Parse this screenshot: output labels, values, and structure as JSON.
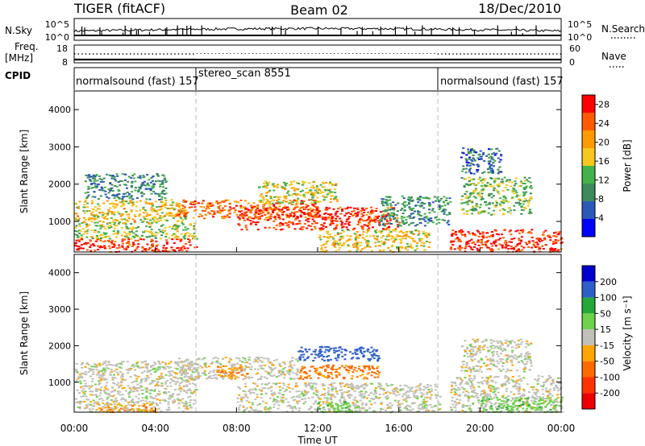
{
  "header": {
    "radar": "TIGER (fitACF)",
    "beam": "Beam 02",
    "date": "18/Dec/2010"
  },
  "status_panels": {
    "nsky_label": "N.Sky",
    "nsky_ticks": [
      "10^5",
      "10^0"
    ],
    "nsearch_label": "N.Search",
    "nsearch_ticks": [
      "10^5",
      "10^0"
    ],
    "freq_label": "Freq.",
    "freq_unit": "[MHz]",
    "freq_ticks": [
      "18",
      "8"
    ],
    "nave_label": "Nave",
    "nave_ticks": [
      "60",
      "0"
    ],
    "cpid_label": "CPID"
  },
  "cpid_segments": [
    {
      "label": "normalsound (fast) 157",
      "start": "00:00",
      "end": "06:00"
    },
    {
      "label": "stereo_scan 8551",
      "start": "06:00",
      "end": "18:00"
    },
    {
      "label": "normalsound (fast) 157",
      "start": "18:00",
      "end": "24:00"
    }
  ],
  "colors": {
    "power_scale": [
      "#0000ff",
      "#2c58b8",
      "#3d8a5a",
      "#44b24a",
      "#f4c81e",
      "#ff9a00",
      "#ff5a00",
      "#ff0000"
    ],
    "velocity_scale": [
      "#0000cc",
      "#2e5fc8",
      "#24a83a",
      "#6ed24a",
      "#c0c0b8",
      "#ffa500",
      "#ff6a00",
      "#ff3300",
      "#ee0000"
    ],
    "mode_divider": "#bbbbbb"
  },
  "chart_data": [
    {
      "type": "heatmap",
      "panel": "power",
      "ylabel": "Slant Range [km]",
      "xlabel": "",
      "xlim": [
        "00:00",
        "24:00"
      ],
      "ylim": [
        180,
        4500
      ],
      "yticks": [
        1000,
        2000,
        3000,
        4000
      ],
      "colorbar_label": "Power [dB]",
      "colorbar_ticks": [
        4,
        8,
        12,
        16,
        20,
        24,
        28
      ],
      "colorbar_range": [
        0,
        30
      ],
      "bands": [
        {
          "t0": 0.0,
          "t1": 6.0,
          "r0": 200,
          "r1": 550,
          "level": 27
        },
        {
          "t0": 0.0,
          "t1": 6.0,
          "r0": 550,
          "r1": 1000,
          "level": 15
        },
        {
          "t0": 0.0,
          "t1": 5.5,
          "r0": 1000,
          "r1": 1600,
          "level": 18
        },
        {
          "t0": 0.5,
          "t1": 4.5,
          "r0": 1600,
          "r1": 2300,
          "level": 9
        },
        {
          "t0": 5.0,
          "t1": 12.0,
          "r0": 1100,
          "r1": 1600,
          "level": 23
        },
        {
          "t0": 8.0,
          "t1": 16.0,
          "r0": 800,
          "r1": 1400,
          "level": 27
        },
        {
          "t0": 9.0,
          "t1": 13.0,
          "r0": 1500,
          "r1": 2100,
          "level": 16
        },
        {
          "t0": 12.0,
          "t1": 17.5,
          "r0": 200,
          "r1": 800,
          "level": 18
        },
        {
          "t0": 15.0,
          "t1": 18.5,
          "r0": 900,
          "r1": 1700,
          "level": 10
        },
        {
          "t0": 18.5,
          "t1": 24.0,
          "r0": 200,
          "r1": 800,
          "level": 27
        },
        {
          "t0": 19.0,
          "t1": 22.5,
          "r0": 1200,
          "r1": 2200,
          "level": 13
        },
        {
          "t0": 19.0,
          "t1": 21.0,
          "r0": 2300,
          "r1": 3000,
          "level": 7
        }
      ]
    },
    {
      "type": "heatmap",
      "panel": "velocity",
      "ylabel": "Slant Range [km]",
      "xlabel": "Time UT",
      "xlim": [
        "00:00",
        "24:00"
      ],
      "xticks": [
        "00:00",
        "04:00",
        "08:00",
        "12:00",
        "16:00",
        "20:00",
        "00:00"
      ],
      "ylim": [
        180,
        4500
      ],
      "yticks": [
        1000,
        2000,
        3000,
        4000
      ],
      "colorbar_label": "Velocity [m s⁻¹]",
      "colorbar_ticks": [
        200,
        100,
        50,
        15,
        -15,
        -50,
        -100,
        -200
      ],
      "bands": [
        {
          "t0": 0.0,
          "t1": 6.0,
          "r0": 200,
          "r1": 1600,
          "level": 0
        },
        {
          "t0": 1.0,
          "t1": 4.0,
          "r0": 200,
          "r1": 450,
          "level": -40
        },
        {
          "t0": 5.0,
          "t1": 11.0,
          "r0": 1100,
          "r1": 1700,
          "level": 0
        },
        {
          "t0": 7.0,
          "t1": 8.5,
          "r0": 1100,
          "r1": 1500,
          "level": -45
        },
        {
          "t0": 11.0,
          "t1": 15.0,
          "r0": 1600,
          "r1": 2000,
          "level": 160
        },
        {
          "t0": 11.0,
          "t1": 15.0,
          "r0": 1100,
          "r1": 1500,
          "level": -60
        },
        {
          "t0": 8.0,
          "t1": 18.0,
          "r0": 200,
          "r1": 1000,
          "level": 0
        },
        {
          "t0": 12.0,
          "t1": 14.0,
          "r0": 200,
          "r1": 500,
          "level": 40
        },
        {
          "t0": 18.5,
          "t1": 24.0,
          "r0": 200,
          "r1": 1200,
          "level": 0
        },
        {
          "t0": 20.0,
          "t1": 24.0,
          "r0": 200,
          "r1": 600,
          "level": 35
        },
        {
          "t0": 19.0,
          "t1": 22.5,
          "r0": 1300,
          "r1": 2200,
          "level": 0
        }
      ]
    }
  ]
}
